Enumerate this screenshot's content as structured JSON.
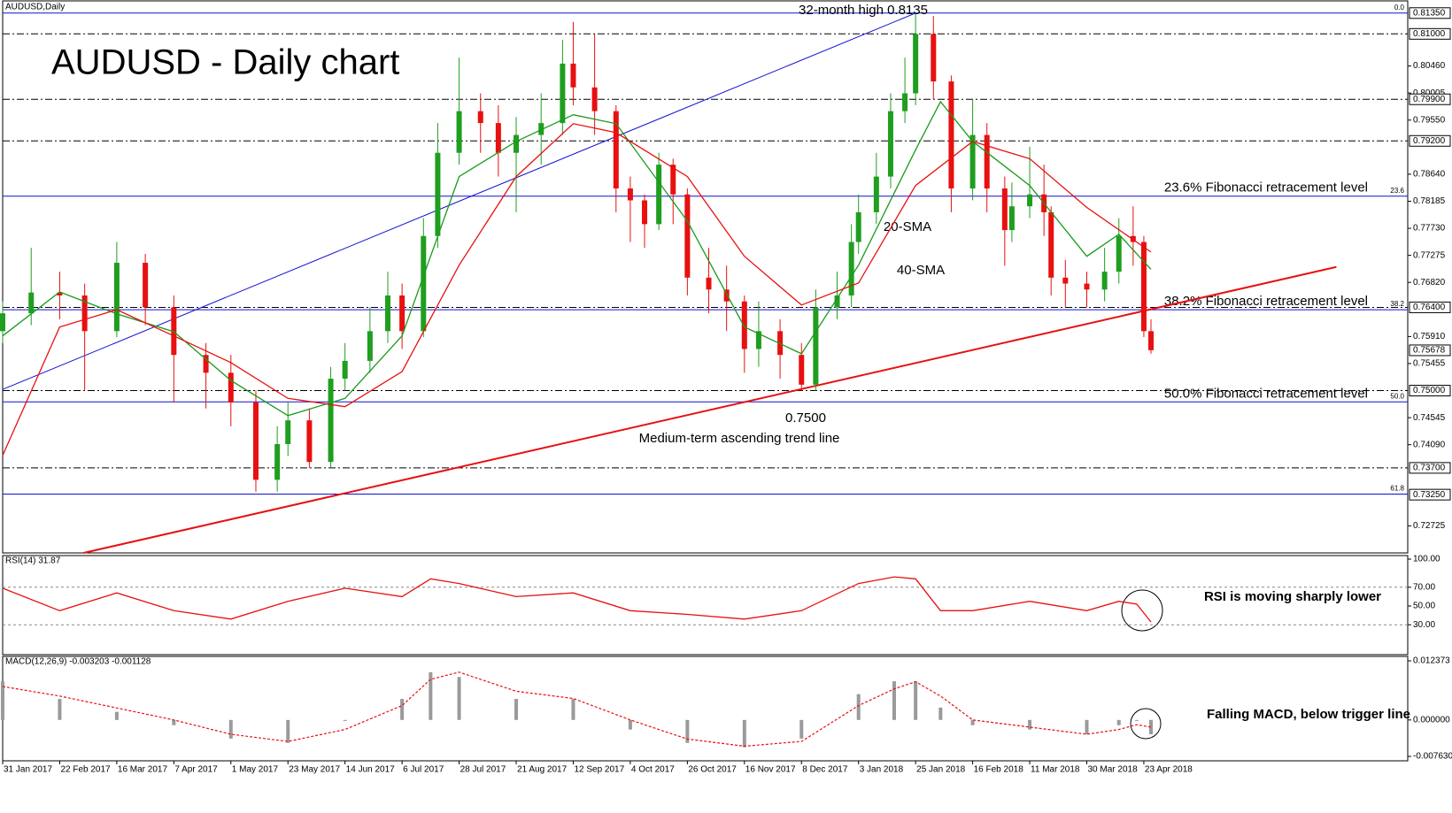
{
  "chart_data": [
    {
      "type": "candlestick",
      "title": "AUDUSD - Daily chart",
      "subtitle": "AUDUSD,Daily",
      "x": [
        0,
        8,
        16,
        23,
        32,
        40,
        48,
        57,
        64,
        71,
        77,
        80,
        86,
        92,
        96,
        103,
        108,
        112,
        118,
        122,
        128,
        134,
        139,
        144,
        151,
        157,
        160,
        166,
        172,
        176,
        180,
        184,
        188,
        192,
        198,
        203,
        208,
        212,
        218,
        224,
        228,
        234,
        238,
        240,
        245,
        249,
        253,
        256,
        261,
        266,
        272,
        276,
        281,
        283,
        288,
        292,
        294,
        298,
        304,
        309,
        313,
        317,
        320,
        322
      ],
      "open": [
        0.76,
        0.763,
        0.7665,
        0.766,
        0.76,
        0.7715,
        0.764,
        0.756,
        0.753,
        0.748,
        0.735,
        0.741,
        0.745,
        0.738,
        0.752,
        0.755,
        0.76,
        0.766,
        0.76,
        0.776,
        0.79,
        0.797,
        0.795,
        0.79,
        0.793,
        0.795,
        0.805,
        0.801,
        0.797,
        0.784,
        0.782,
        0.778,
        0.788,
        0.783,
        0.769,
        0.767,
        0.765,
        0.757,
        0.76,
        0.756,
        0.751,
        0.764,
        0.766,
        0.775,
        0.78,
        0.786,
        0.797,
        0.8,
        0.81,
        0.802,
        0.784,
        0.793,
        0.784,
        0.777,
        0.781,
        0.783,
        0.78,
        0.769,
        0.768,
        0.767,
        0.77,
        0.776,
        0.775,
        0.76
      ],
      "high": [
        0.765,
        0.774,
        0.77,
        0.768,
        0.775,
        0.773,
        0.766,
        0.758,
        0.756,
        0.75,
        0.744,
        0.748,
        0.747,
        0.754,
        0.758,
        0.764,
        0.77,
        0.768,
        0.779,
        0.795,
        0.806,
        0.8,
        0.798,
        0.796,
        0.8,
        0.809,
        0.812,
        0.81,
        0.798,
        0.786,
        0.783,
        0.79,
        0.789,
        0.784,
        0.774,
        0.771,
        0.766,
        0.765,
        0.762,
        0.758,
        0.767,
        0.77,
        0.778,
        0.783,
        0.79,
        0.8,
        0.806,
        0.8135,
        0.813,
        0.803,
        0.799,
        0.795,
        0.786,
        0.785,
        0.791,
        0.788,
        0.781,
        0.772,
        0.77,
        0.774,
        0.779,
        0.781,
        0.776,
        0.762
      ],
      "low": [
        0.758,
        0.761,
        0.762,
        0.75,
        0.759,
        0.761,
        0.748,
        0.747,
        0.744,
        0.733,
        0.733,
        0.739,
        0.737,
        0.737,
        0.75,
        0.753,
        0.758,
        0.757,
        0.759,
        0.774,
        0.788,
        0.79,
        0.786,
        0.78,
        0.788,
        0.793,
        0.798,
        0.793,
        0.78,
        0.775,
        0.774,
        0.777,
        0.778,
        0.766,
        0.763,
        0.76,
        0.753,
        0.754,
        0.752,
        0.75,
        0.75,
        0.762,
        0.764,
        0.773,
        0.778,
        0.784,
        0.795,
        0.798,
        0.799,
        0.78,
        0.782,
        0.78,
        0.771,
        0.775,
        0.779,
        0.776,
        0.766,
        0.764,
        0.764,
        0.765,
        0.768,
        0.771,
        0.759,
        0.7562
      ],
      "close": [
        0.763,
        0.7665,
        0.766,
        0.76,
        0.7715,
        0.764,
        0.756,
        0.753,
        0.748,
        0.735,
        0.741,
        0.745,
        0.738,
        0.752,
        0.755,
        0.76,
        0.766,
        0.76,
        0.776,
        0.79,
        0.797,
        0.795,
        0.79,
        0.793,
        0.795,
        0.805,
        0.801,
        0.797,
        0.784,
        0.782,
        0.778,
        0.788,
        0.783,
        0.769,
        0.767,
        0.765,
        0.757,
        0.76,
        0.756,
        0.751,
        0.764,
        0.766,
        0.775,
        0.78,
        0.786,
        0.797,
        0.8,
        0.81,
        0.802,
        0.784,
        0.793,
        0.784,
        0.777,
        0.781,
        0.783,
        0.78,
        0.769,
        0.768,
        0.767,
        0.77,
        0.776,
        0.775,
        0.76,
        0.7568
      ],
      "up_color": "#1f9e1f",
      "down_color": "#e81010",
      "xlim": [
        0,
        394
      ],
      "xticks": [
        {
          "value": 0,
          "label": "31 Jan 2017"
        },
        {
          "value": 16,
          "label": "22 Feb 2017"
        },
        {
          "value": 32,
          "label": "16 Mar 2017"
        },
        {
          "value": 48,
          "label": "7 Apr 2017"
        },
        {
          "value": 64,
          "label": "1 May 2017"
        },
        {
          "value": 80,
          "label": "23 May 2017"
        },
        {
          "value": 96,
          "label": "14 Jun 2017"
        },
        {
          "value": 112,
          "label": "6 Jul 2017"
        },
        {
          "value": 128,
          "label": "28 Jul 2017"
        },
        {
          "value": 144,
          "label": "21 Aug 2017"
        },
        {
          "value": 160,
          "label": "12 Sep 2017"
        },
        {
          "value": 176,
          "label": "4 Oct 2017"
        },
        {
          "value": 192,
          "label": "26 Oct 2017"
        },
        {
          "value": 208,
          "label": "16 Nov 2017"
        },
        {
          "value": 224,
          "label": "8 Dec 2017"
        },
        {
          "value": 240,
          "label": "3 Jan 2018"
        },
        {
          "value": 256,
          "label": "25 Jan 2018"
        },
        {
          "value": 272,
          "label": "16 Feb 2018"
        },
        {
          "value": 288,
          "label": "11 Mar 2018"
        },
        {
          "value": 304,
          "label": "30 Mar 2018"
        },
        {
          "value": 320,
          "label": "23 Apr 2018"
        }
      ],
      "ylim": [
        0.7227,
        0.8157
      ],
      "yticks": [
        {
          "value": 0.8046,
          "label": "0.80460"
        },
        {
          "value": 0.80005,
          "label": "0.80005"
        },
        {
          "value": 0.7955,
          "label": "0.79550"
        },
        {
          "value": 0.7864,
          "label": "0.78640"
        },
        {
          "value": 0.78185,
          "label": "0.78185"
        },
        {
          "value": 0.7773,
          "label": "0.77730"
        },
        {
          "value": 0.77275,
          "label": "0.77275"
        },
        {
          "value": 0.7682,
          "label": "0.76820"
        },
        {
          "value": 0.7591,
          "label": "0.75910"
        },
        {
          "value": 0.75455,
          "label": "0.75455"
        },
        {
          "value": 0.74545,
          "label": "0.74545"
        },
        {
          "value": 0.7409,
          "label": "0.74090"
        },
        {
          "value": 0.72725,
          "label": "0.72725"
        }
      ],
      "price_labels": [
        {
          "value": 0.8135,
          "label": "0.81350"
        },
        {
          "value": 0.81,
          "label": "0.81000"
        },
        {
          "value": 0.799,
          "label": "0.79900"
        },
        {
          "value": 0.792,
          "label": "0.79200"
        },
        {
          "value": 0.764,
          "label": "0.76400"
        },
        {
          "value": 0.75678,
          "label": "0.75678"
        },
        {
          "value": 0.75,
          "label": "0.75000"
        },
        {
          "value": 0.737,
          "label": "0.73700"
        },
        {
          "value": 0.7325,
          "label": "0.73250"
        }
      ],
      "levels": [
        0.81,
        0.799,
        0.792,
        0.764,
        0.75,
        0.737
      ],
      "fibonacci": [
        {
          "value": 0.8135,
          "level": "0.0"
        },
        {
          "value": 0.7827,
          "level": "23.6",
          "text": "23.6% Fibonacci retracement level"
        },
        {
          "value": 0.7636,
          "level": "38.2",
          "text": "38.2% Fibonacci retracement level"
        },
        {
          "value": 0.7481,
          "level": "50.0",
          "text": "50.0% Fibonacci retracement level"
        },
        {
          "value": 0.7326,
          "level": "61.8"
        }
      ],
      "fib_color": "#1010d0",
      "series": [
        {
          "name": "20-SMA",
          "color": "#1a9a1a",
          "x": [
            0,
            16,
            32,
            48,
            64,
            80,
            96,
            112,
            128,
            144,
            160,
            172,
            192,
            208,
            224,
            240,
            256,
            263,
            272,
            288,
            304,
            313,
            322
          ],
          "values": [
            0.7592,
            0.7666,
            0.7629,
            0.7599,
            0.7517,
            0.7458,
            0.7487,
            0.7592,
            0.786,
            0.7919,
            0.7964,
            0.7949,
            0.7785,
            0.7607,
            0.7562,
            0.7711,
            0.7905,
            0.7986,
            0.7919,
            0.7845,
            0.7726,
            0.7763,
            0.7704
          ]
        },
        {
          "name": "40-SMA",
          "color": "#e81010",
          "x": [
            0,
            16,
            32,
            48,
            64,
            80,
            96,
            112,
            128,
            144,
            160,
            172,
            192,
            208,
            224,
            240,
            256,
            272,
            288,
            304,
            322
          ],
          "values": [
            0.7391,
            0.7607,
            0.7636,
            0.7592,
            0.7547,
            0.7487,
            0.7473,
            0.7532,
            0.7711,
            0.786,
            0.7949,
            0.7934,
            0.786,
            0.7726,
            0.7644,
            0.7681,
            0.7845,
            0.7919,
            0.789,
            0.7808,
            0.7733
          ]
        }
      ],
      "trend_lines": [
        {
          "name": "Medium-term ascending trend line",
          "color": "#e81010",
          "x": [
            22.7,
            374
          ],
          "y": [
            0.7227,
            0.7708
          ]
        },
        {
          "color": "#1010d0",
          "x": [
            0,
            256
          ],
          "y": [
            0.7502,
            0.8135
          ]
        }
      ],
      "annotations": [
        "32-month high 0.8135",
        "0.7500"
      ]
    },
    {
      "type": "line",
      "title": "RSI(14) 31.87",
      "color": "#e81010",
      "x": [
        0,
        16,
        32,
        48,
        64,
        80,
        96,
        112,
        120,
        128,
        144,
        160,
        176,
        192,
        208,
        224,
        240,
        250,
        256,
        263,
        272,
        288,
        304,
        313,
        318,
        322
      ],
      "values": [
        69,
        45,
        64,
        45,
        36,
        55,
        69,
        60,
        79,
        74,
        60,
        64,
        45,
        41,
        36,
        45,
        74,
        81,
        79,
        45,
        45,
        55,
        45,
        55,
        52,
        33
      ],
      "ylim": [
        0,
        100
      ],
      "yticks": [
        {
          "value": 100,
          "label": "100.00"
        },
        {
          "value": 70,
          "label": "70.00"
        },
        {
          "value": 50,
          "label": "50.00"
        },
        {
          "value": 30,
          "label": "30.00"
        }
      ],
      "levels": [
        30,
        70
      ],
      "annotation": "RSI is moving sharply lower"
    },
    {
      "type": "macd",
      "title": "MACD(12,26,9) -0.003203 -0.001128",
      "histogram_color": "#9a9a9a",
      "signal_color": "#e81010",
      "x": [
        0,
        16,
        32,
        48,
        64,
        80,
        96,
        112,
        120,
        128,
        144,
        160,
        176,
        192,
        208,
        224,
        240,
        250,
        256,
        263,
        272,
        288,
        304,
        313,
        318,
        322
      ],
      "histogram": [
        0.0081,
        0.0044,
        0.0017,
        -0.0011,
        -0.0039,
        -0.0048,
        -0.0002,
        0.0044,
        0.01,
        0.009,
        0.0044,
        0.0044,
        -0.002,
        -0.0048,
        -0.0057,
        -0.0039,
        0.0054,
        0.0081,
        0.0081,
        0.0026,
        -0.0011,
        -0.002,
        -0.003,
        -0.0011,
        -0.0002,
        -0.003
      ],
      "signal": [
        0.007,
        0.005,
        0.0025,
        0,
        -0.003,
        -0.0045,
        -0.002,
        0.003,
        0.0085,
        0.01,
        0.006,
        0.0045,
        0,
        -0.004,
        -0.0055,
        -0.0045,
        0.003,
        0.0065,
        0.008,
        0.005,
        0,
        -0.0015,
        -0.003,
        -0.002,
        -0.001,
        -0.0015
      ],
      "ylim": [
        -0.00855,
        0.0133
      ],
      "yticks": [
        {
          "value": 0.012373,
          "label": "0.012373"
        },
        {
          "value": 0,
          "label": "0.000000"
        },
        {
          "value": -0.00763,
          "label": "-0.007630"
        }
      ],
      "annotation": "Falling MACD, below trigger line"
    }
  ]
}
